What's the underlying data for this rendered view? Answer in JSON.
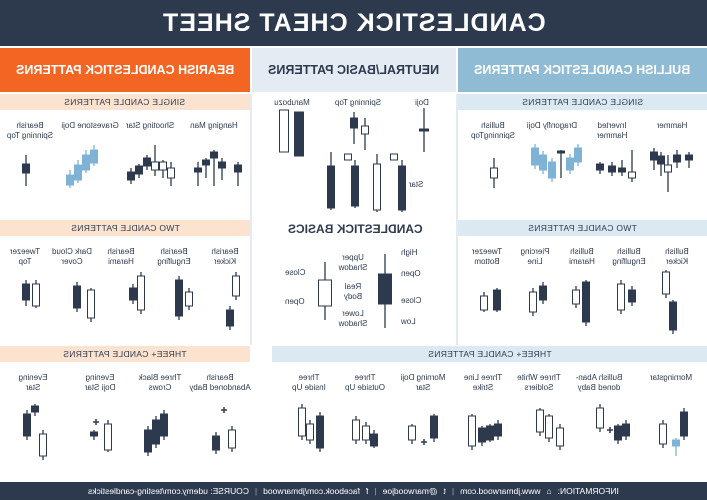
{
  "title": "CANDLESTICK CHEAT SHEET",
  "colors": {
    "navy": "#2d3a4e",
    "bearish_orange": "#f26522",
    "bearish_light": "#fbe3d0",
    "neutral_light": "#e4ebf3",
    "bullish_blue": "#8fbcd4",
    "bullish_light": "#dbe9f2",
    "accent_blue": "#7fb3d5"
  },
  "columns": {
    "bearish": "BEARISH CANDLESTICK PATTERNS",
    "neutral": "NEUTRAL/BASIC PATTERNS",
    "bullish": "BULLISH CANDLESTICK PATTERNS"
  },
  "sections": {
    "single": "SINGLE CANDLE PATTERNS",
    "two": "TWO CANDLE PATTERNS",
    "three_plus": "THREE+ CANDLE PATTERNS",
    "basics": "CANDLESTICK BASICS"
  },
  "bearish_single": [
    "Bearish\nSpinning Top",
    "Gravestone Doji",
    "Shooting Star",
    "Hanging Man"
  ],
  "neutral_single": [
    "Doji",
    "Spinning Top",
    "Marubozu"
  ],
  "neutral_star": "Star",
  "bullish_single": [
    "Bullish\nSpinningTop",
    "Dragonfly Doji",
    "Inverted\nHammer",
    "Hammer"
  ],
  "bearish_two": [
    "Tweezer\nTop",
    "Dark Cloud\nCover",
    "Bearish\nHarami",
    "Bearish\nEngulfing",
    "Bearish\nKicker"
  ],
  "bullish_two": [
    "Tweezer\nBottom",
    "Piercing\nLine",
    "Bullish\nHarami",
    "Bullish\nEngulfing",
    "Bullish\nKicker"
  ],
  "bearish_three": [
    "Evening\nStar",
    "Evening\nDoji Star",
    "Three Black\nCrows",
    "Bearish\nAbandoned Baby"
  ],
  "bullish_three": [
    "Three\nInside Up",
    "Three\nOutside Up",
    "Morning Doji\nStar",
    "Three Line\nStrike",
    "Three White\nSoldiers",
    "Bullish Aban-\ndoned Baby",
    "Morningstar"
  ],
  "basics": {
    "high": "High",
    "open": "Open",
    "close": "Close",
    "low": "Low",
    "upper_shadow": "Upper\nShadow",
    "real_body": "Real\nBody",
    "lower_shadow": "Lower\nShadow",
    "close_left": "Close",
    "open_left": "Open"
  },
  "footer": {
    "information": "INFORMATION:",
    "website": "www.jbmarwood.com",
    "twitter": "@marwoodjoe",
    "facebook": "facebook.com/jbmarwood",
    "course": "COURSE: udemy.com/testing-candlesticks"
  }
}
